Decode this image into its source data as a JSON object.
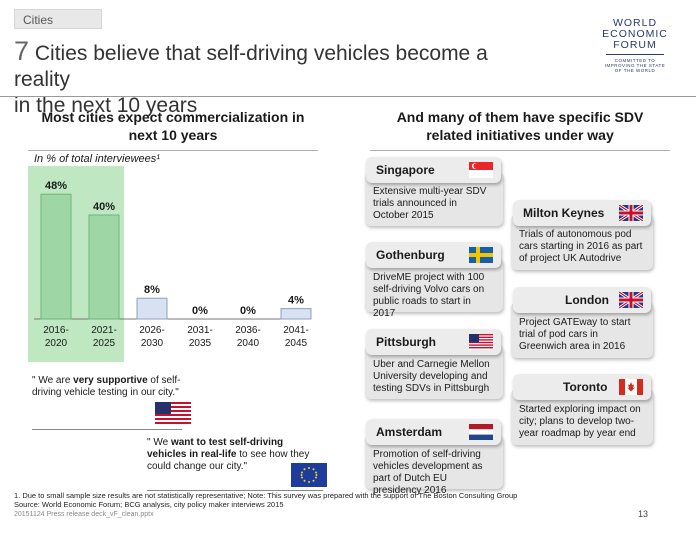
{
  "section_tag": "Cities",
  "title": {
    "number": "7",
    "line1": " Cities believe that self-driving vehicles become a reality",
    "line2": "in the next 10 years"
  },
  "logo": {
    "line1": "WORLD",
    "line2": "ECONOMIC",
    "line3": "FORUM",
    "tag1": "COMMITTED TO",
    "tag2": "IMPROVING THE STATE",
    "tag3": "OF THE WORLD"
  },
  "left_heading": {
    "line1": "Most cities expect commercialization in",
    "line2": "next 10 years"
  },
  "right_heading": {
    "line1": "And many of them have specific SDV",
    "line2": "related initiatives under way"
  },
  "chart_subtitle": "In % of total interviewees¹",
  "chart_data": {
    "type": "bar",
    "categories": [
      "2016-\n2020",
      "2021-\n2025",
      "2026-\n2030",
      "2031-\n2035",
      "2036-\n2040",
      "2041-\n2045"
    ],
    "values": [
      48,
      40,
      8,
      0,
      0,
      4
    ],
    "value_labels": [
      "48%",
      "40%",
      "8%",
      "0%",
      "0%",
      "4%"
    ],
    "title": "In % of total interviewees",
    "highlighted_categories": [
      "2016-\n2020",
      "2021-\n2025"
    ],
    "ylim": [
      0,
      50
    ],
    "colors": {
      "highlight": "#9ed7a5",
      "normal": "#d7e1f2",
      "border": "#8fa0c0",
      "highlight_border": "#6fb47a"
    }
  },
  "quotes": {
    "q1": {
      "pre": "\" We are ",
      "bold": "very supportive",
      "post": " of self-driving vehicle testing in our city.\""
    },
    "q2": {
      "pre": "\" We ",
      "bold": "want to test self-driving vehicles in real-life",
      "post": " to see how they could change our city.\""
    }
  },
  "cities": {
    "singapore": {
      "name": "Singapore",
      "text": "Extensive multi-year SDV trials announced in October 2015"
    },
    "gothenburg": {
      "name": "Gothenburg",
      "text": "DriveME project with 100 self-driving Volvo cars on public roads to start in 2017"
    },
    "pittsburgh": {
      "name": "Pittsburgh",
      "text": "Uber and Carnegie Mellon University developing and testing SDVs in Pittsburgh"
    },
    "amsterdam": {
      "name": "Amsterdam",
      "text": "Promotion of self-driving vehicles development as part of Dutch EU presidency 2016"
    },
    "milton_keynes": {
      "name": "Milton Keynes",
      "text": "Trials of autonomous pod cars starting in 2016 as part of project UK Autodrive"
    },
    "london": {
      "name": "London",
      "text": "Project GATEway to start trial of pod cars in Greenwich area in 2016"
    },
    "toronto": {
      "name": "Toronto",
      "text": "Started exploring impact on city; plans to develop two-year roadmap by year end"
    }
  },
  "footnote": {
    "line1": "1. Due to small sample size results are not statistically representative; Note: This survey was prepared with the support of The Boston Consulting Group",
    "line2": "Source: World Economic Forum; BCG analysis, city policy maker interviews 2015",
    "file": "20151124 Press release deck_vF_clean.pptx",
    "page": "13"
  }
}
